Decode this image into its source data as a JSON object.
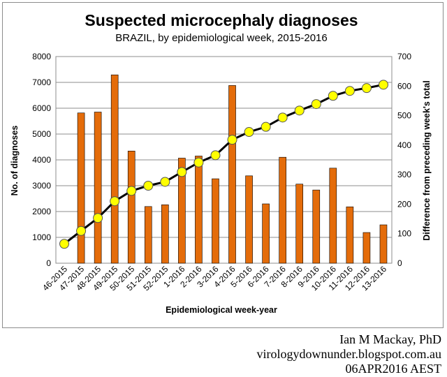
{
  "chart_data": {
    "type": "bar+line",
    "title": "Suspected microcephaly diagnoses",
    "subtitle": "BRAZIL, by epidemiological week, 2015-2016",
    "xlabel": "Epidemiological week-year",
    "ylabel_left": "No. of diagnoses",
    "ylabel_right": "Difference from preceding week's total",
    "ylim_left": [
      0,
      8000
    ],
    "yticks_left": [
      0,
      1000,
      2000,
      3000,
      4000,
      5000,
      6000,
      7000,
      8000
    ],
    "ylim_right": [
      0,
      700
    ],
    "yticks_right": [
      0,
      100,
      200,
      300,
      400,
      500,
      600,
      700
    ],
    "grid": true,
    "categories": [
      "46-2015",
      "47-2015",
      "48-2015",
      "49-2015",
      "50-2015",
      "51-2015",
      "52-2015",
      "1-2016",
      "2-2016",
      "3-2016",
      "4-2016",
      "5-2016",
      "6-2016",
      "7-2016",
      "8-2016",
      "9-2016",
      "10-2016",
      "11-2016",
      "12-2016",
      "13-2016"
    ],
    "series": [
      {
        "name": "Difference from preceding week's total",
        "kind": "bar",
        "axis": "right",
        "color": "#E46C0A",
        "values": [
          0,
          509,
          512,
          638,
          380,
          192,
          198,
          356,
          363,
          286,
          602,
          296,
          201,
          359,
          268,
          248,
          322,
          191,
          104,
          130
        ]
      },
      {
        "name": "No. of diagnoses",
        "kind": "line",
        "axis": "left",
        "color": "#000000",
        "marker_color": "#FFFF00",
        "values": [
          750,
          1250,
          1750,
          2400,
          2800,
          3000,
          3150,
          3530,
          3900,
          4180,
          4780,
          5080,
          5280,
          5640,
          5910,
          6160,
          6480,
          6670,
          6780,
          6910
        ]
      }
    ]
  },
  "credits": {
    "author": "Ian M Mackay, PhD",
    "site": "virologydownunder.blogspot.com.au",
    "date": "06APR2016 AEST"
  }
}
